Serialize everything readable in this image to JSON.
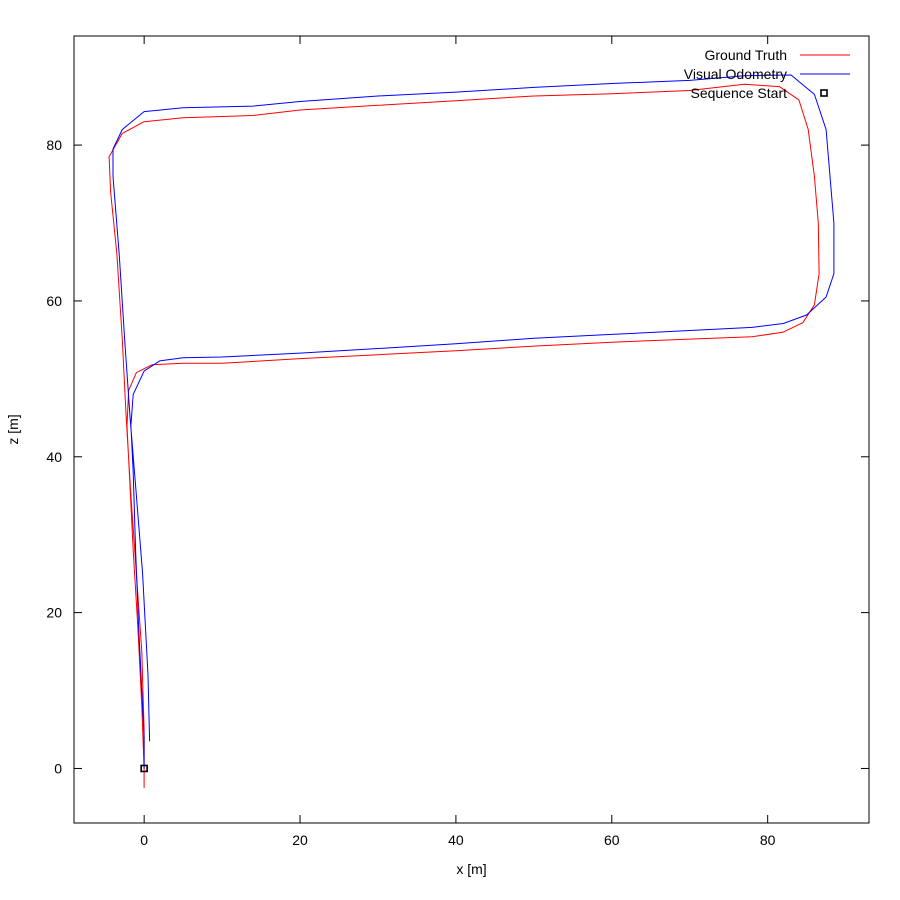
{
  "chart_data": {
    "type": "line",
    "title": "",
    "xlabel": "x [m]",
    "ylabel": "z [m]",
    "xlim": [
      -9,
      93
    ],
    "ylim": [
      -7,
      94
    ],
    "xticks": [
      0,
      20,
      40,
      60,
      80
    ],
    "yticks": [
      0,
      20,
      40,
      60,
      80
    ],
    "grid": false,
    "legend_position": "top-right",
    "series": [
      {
        "name": "Ground Truth",
        "color": "#ff0000",
        "points": [
          [
            0.0,
            -2.5
          ],
          [
            0.0,
            0.0
          ],
          [
            -0.3,
            8
          ],
          [
            -0.8,
            18
          ],
          [
            -1.4,
            28
          ],
          [
            -1.9,
            38
          ],
          [
            -2.2,
            44
          ],
          [
            -2.0,
            48.5
          ],
          [
            -1.0,
            50.8
          ],
          [
            1.0,
            51.8
          ],
          [
            5.0,
            52.0
          ],
          [
            10.0,
            52.0
          ],
          [
            20.0,
            52.6
          ],
          [
            30.0,
            53.1
          ],
          [
            40.0,
            53.6
          ],
          [
            50.0,
            54.2
          ],
          [
            60.0,
            54.7
          ],
          [
            70.0,
            55.1
          ],
          [
            78.0,
            55.4
          ],
          [
            82.0,
            56.0
          ],
          [
            84.5,
            57.2
          ],
          [
            86.0,
            59.5
          ],
          [
            86.6,
            63.5
          ],
          [
            86.5,
            70.0
          ],
          [
            86.0,
            76.0
          ],
          [
            85.2,
            82.0
          ],
          [
            84.0,
            85.8
          ],
          [
            81.5,
            87.5
          ],
          [
            77.0,
            87.8
          ],
          [
            70.0,
            87.0
          ],
          [
            60.0,
            86.6
          ],
          [
            50.0,
            86.3
          ],
          [
            40.0,
            85.7
          ],
          [
            30.0,
            85.1
          ],
          [
            20.0,
            84.5
          ],
          [
            14.0,
            83.8
          ],
          [
            5.0,
            83.5
          ],
          [
            0.0,
            83.0
          ],
          [
            -2.8,
            81.5
          ],
          [
            -4.5,
            78.5
          ],
          [
            -4.3,
            74.0
          ],
          [
            -3.5,
            66.0
          ],
          [
            -2.8,
            55.0
          ],
          [
            -2.3,
            45.0
          ],
          [
            -1.7,
            35.0
          ],
          [
            -1.0,
            25.0
          ],
          [
            -0.3,
            15.0
          ],
          [
            0.0,
            5.0
          ],
          [
            0.0,
            0.0
          ]
        ]
      },
      {
        "name": "Visual Odometry",
        "color": "#0000ff",
        "points": [
          [
            0.0,
            0.0
          ],
          [
            0.0,
            4.0
          ],
          [
            -0.3,
            10
          ],
          [
            -0.7,
            18
          ],
          [
            -1.1,
            28
          ],
          [
            -1.4,
            38
          ],
          [
            -1.7,
            44
          ],
          [
            -1.4,
            48
          ],
          [
            0.0,
            51.0
          ],
          [
            2.0,
            52.3
          ],
          [
            5.0,
            52.7
          ],
          [
            10.0,
            52.8
          ],
          [
            20.0,
            53.3
          ],
          [
            30.0,
            53.9
          ],
          [
            40.0,
            54.5
          ],
          [
            50.0,
            55.2
          ],
          [
            60.0,
            55.7
          ],
          [
            70.0,
            56.2
          ],
          [
            78.0,
            56.6
          ],
          [
            82.0,
            57.1
          ],
          [
            85.0,
            58.2
          ],
          [
            87.5,
            60.5
          ],
          [
            88.5,
            63.5
          ],
          [
            88.5,
            70.0
          ],
          [
            88.0,
            76.0
          ],
          [
            87.5,
            82.0
          ],
          [
            86.0,
            86.5
          ],
          [
            83.0,
            89.0
          ],
          [
            77.0,
            88.9
          ],
          [
            70.0,
            88.3
          ],
          [
            60.0,
            87.9
          ],
          [
            50.0,
            87.4
          ],
          [
            40.0,
            86.8
          ],
          [
            30.0,
            86.3
          ],
          [
            20.0,
            85.6
          ],
          [
            14.0,
            85.0
          ],
          [
            5.0,
            84.8
          ],
          [
            0.0,
            84.3
          ],
          [
            -2.8,
            82.0
          ],
          [
            -4.0,
            79.5
          ],
          [
            -4.0,
            76.0
          ],
          [
            -3.2,
            66.0
          ],
          [
            -2.5,
            55.0
          ],
          [
            -1.8,
            45.0
          ],
          [
            -1.0,
            35.0
          ],
          [
            -0.2,
            25.0
          ],
          [
            0.5,
            12.0
          ],
          [
            0.7,
            3.5
          ]
        ]
      },
      {
        "name": "Sequence Start",
        "marker": "square",
        "color": "#000000",
        "points": [
          [
            0.0,
            0.0
          ]
        ]
      }
    ]
  }
}
